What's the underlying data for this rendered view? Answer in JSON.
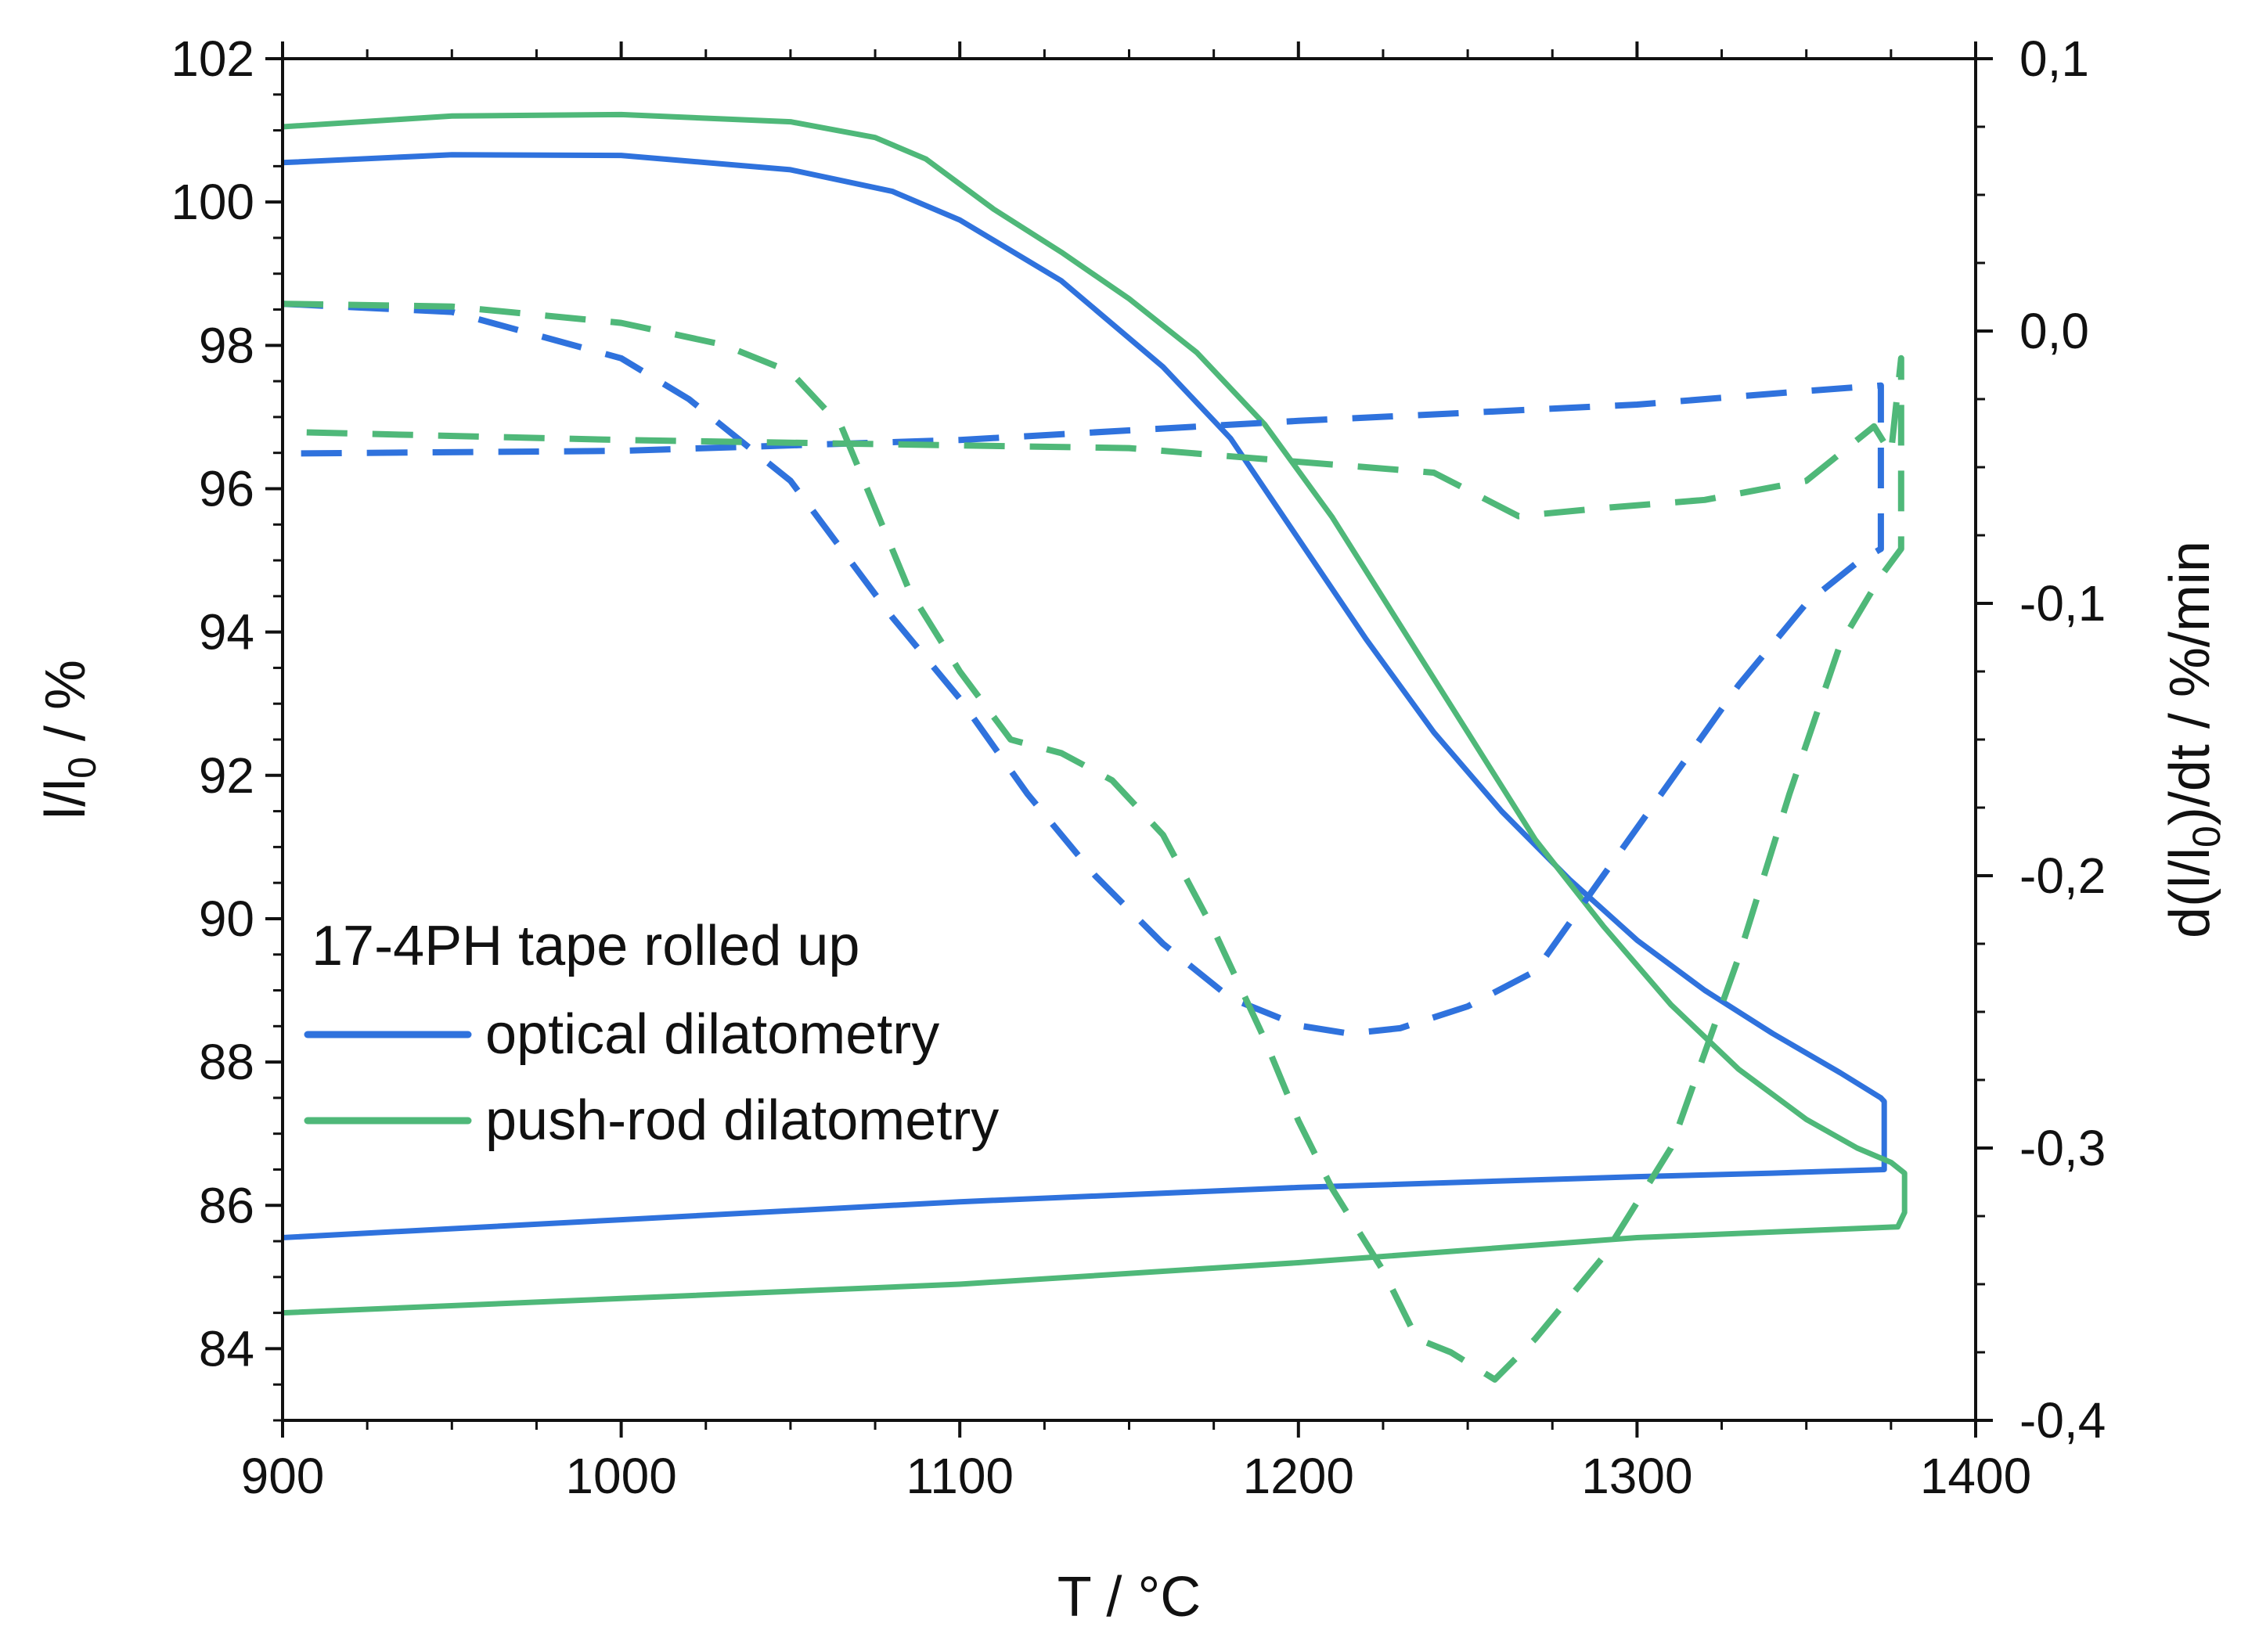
{
  "chart_data": {
    "type": "line",
    "title": "",
    "xlabel": "T / °C",
    "ylabel": "l/l0 / %",
    "ylabel_parts": {
      "main": "l/l",
      "sub": "0",
      "tail": " / %"
    },
    "y2label": "d(l/l0)/dt / %/min",
    "y2label_parts": {
      "pre": "d(l/l",
      "sub": "0",
      "post": ")/dt / %/min"
    },
    "xlim": [
      900,
      1400
    ],
    "ylim": [
      83,
      102
    ],
    "y2lim": [
      -0.4,
      0.1
    ],
    "x_ticks": [
      900,
      1000,
      1100,
      1200,
      1300,
      1400
    ],
    "x_tick_labels": [
      "900",
      "1000",
      "1100",
      "1200",
      "1300",
      "1400"
    ],
    "y_ticks": [
      84,
      86,
      88,
      90,
      92,
      94,
      96,
      98,
      100,
      102
    ],
    "y_tick_labels": [
      "84",
      "86",
      "88",
      "90",
      "92",
      "94",
      "96",
      "98",
      "100",
      "102"
    ],
    "y2_ticks": [
      -0.4,
      -0.3,
      -0.2,
      -0.1,
      0.0,
      0.1
    ],
    "y2_tick_labels": [
      "-0,4",
      "-0,3",
      "-0,2",
      "-0,1",
      "0,0",
      "0,1"
    ],
    "legend": {
      "title": "17-4PH tape rolled up",
      "position": "bottom-left",
      "entries": [
        {
          "label": "optical dilatometry",
          "color": "#2f72dd"
        },
        {
          "label": "push-rod dilatometry",
          "color": "#4fb879"
        }
      ]
    },
    "series": [
      {
        "name": "optical dilatometry",
        "axis": "left",
        "style": "solid",
        "color": "#2f72dd",
        "points": [
          [
            900,
            100.55
          ],
          [
            950,
            100.66
          ],
          [
            1000,
            100.65
          ],
          [
            1050,
            100.45
          ],
          [
            1080,
            100.15
          ],
          [
            1100,
            99.75
          ],
          [
            1130,
            98.9
          ],
          [
            1160,
            97.7
          ],
          [
            1180,
            96.7
          ],
          [
            1200,
            95.3
          ],
          [
            1220,
            93.9
          ],
          [
            1240,
            92.6
          ],
          [
            1260,
            91.5
          ],
          [
            1280,
            90.55
          ],
          [
            1300,
            89.7
          ],
          [
            1320,
            89.0
          ],
          [
            1340,
            88.4
          ],
          [
            1360,
            87.85
          ],
          [
            1372,
            87.5
          ],
          [
            1373,
            87.45
          ],
          [
            1373,
            86.5
          ],
          [
            1340,
            86.45
          ],
          [
            1300,
            86.4
          ],
          [
            1200,
            86.25
          ],
          [
            1100,
            86.05
          ],
          [
            1000,
            85.8
          ],
          [
            900,
            85.55
          ]
        ]
      },
      {
        "name": "push-rod dilatometry",
        "axis": "left",
        "style": "solid",
        "color": "#4fb879",
        "points": [
          [
            900,
            101.05
          ],
          [
            950,
            101.2
          ],
          [
            1000,
            101.22
          ],
          [
            1050,
            101.12
          ],
          [
            1075,
            100.9
          ],
          [
            1090,
            100.6
          ],
          [
            1110,
            99.9
          ],
          [
            1130,
            99.3
          ],
          [
            1150,
            98.65
          ],
          [
            1170,
            97.9
          ],
          [
            1190,
            96.9
          ],
          [
            1210,
            95.6
          ],
          [
            1230,
            94.1
          ],
          [
            1250,
            92.6
          ],
          [
            1270,
            91.1
          ],
          [
            1290,
            89.9
          ],
          [
            1310,
            88.8
          ],
          [
            1330,
            87.9
          ],
          [
            1350,
            87.2
          ],
          [
            1365,
            86.8
          ],
          [
            1375,
            86.6
          ],
          [
            1379,
            86.45
          ],
          [
            1379,
            85.9
          ],
          [
            1377,
            85.7
          ],
          [
            1300,
            85.55
          ],
          [
            1200,
            85.2
          ],
          [
            1100,
            84.9
          ],
          [
            1000,
            84.7
          ],
          [
            900,
            84.5
          ]
        ]
      },
      {
        "name": "optical dilatometry rate",
        "axis": "right",
        "style": "dashed",
        "color": "#2f72dd",
        "points": [
          [
            900,
            0.01
          ],
          [
            950,
            0.007
          ],
          [
            1000,
            -0.01
          ],
          [
            1020,
            -0.025
          ],
          [
            1050,
            -0.055
          ],
          [
            1080,
            -0.105
          ],
          [
            1100,
            -0.135
          ],
          [
            1120,
            -0.17
          ],
          [
            1140,
            -0.2
          ],
          [
            1160,
            -0.225
          ],
          [
            1180,
            -0.245
          ],
          [
            1200,
            -0.255
          ],
          [
            1215,
            -0.258
          ],
          [
            1230,
            -0.256
          ],
          [
            1250,
            -0.248
          ],
          [
            1270,
            -0.235
          ],
          [
            1290,
            -0.2
          ],
          [
            1310,
            -0.165
          ],
          [
            1330,
            -0.13
          ],
          [
            1350,
            -0.1
          ],
          [
            1365,
            -0.085
          ],
          [
            1372,
            -0.08
          ],
          [
            1372,
            -0.02
          ],
          [
            1350,
            -0.022
          ],
          [
            1300,
            -0.027
          ],
          [
            1200,
            -0.033
          ],
          [
            1100,
            -0.04
          ],
          [
            1000,
            -0.044
          ],
          [
            900,
            -0.045
          ]
        ]
      },
      {
        "name": "push-rod dilatometry rate",
        "axis": "right",
        "style": "dashed",
        "color": "#4fb879",
        "points": [
          [
            900,
            0.01
          ],
          [
            950,
            0.009
          ],
          [
            1000,
            0.003
          ],
          [
            1030,
            -0.005
          ],
          [
            1050,
            -0.015
          ],
          [
            1065,
            -0.035
          ],
          [
            1075,
            -0.065
          ],
          [
            1085,
            -0.095
          ],
          [
            1100,
            -0.125
          ],
          [
            1115,
            -0.15
          ],
          [
            1130,
            -0.155
          ],
          [
            1145,
            -0.165
          ],
          [
            1160,
            -0.185
          ],
          [
            1175,
            -0.22
          ],
          [
            1190,
            -0.26
          ],
          [
            1200,
            -0.29
          ],
          [
            1210,
            -0.315
          ],
          [
            1225,
            -0.345
          ],
          [
            1235,
            -0.37
          ],
          [
            1245,
            -0.375
          ],
          [
            1258,
            -0.385
          ],
          [
            1270,
            -0.37
          ],
          [
            1290,
            -0.34
          ],
          [
            1310,
            -0.3
          ],
          [
            1330,
            -0.23
          ],
          [
            1345,
            -0.17
          ],
          [
            1360,
            -0.115
          ],
          [
            1372,
            -0.09
          ],
          [
            1378,
            -0.08
          ],
          [
            1378,
            -0.01
          ],
          [
            1375,
            -0.045
          ],
          [
            1370,
            -0.035
          ],
          [
            1350,
            -0.055
          ],
          [
            1320,
            -0.062
          ],
          [
            1290,
            -0.065
          ],
          [
            1265,
            -0.068
          ],
          [
            1240,
            -0.052
          ],
          [
            1220,
            -0.05
          ],
          [
            1190,
            -0.047
          ],
          [
            1150,
            -0.043
          ],
          [
            1100,
            -0.042
          ],
          [
            1000,
            -0.04
          ],
          [
            900,
            -0.037
          ]
        ]
      }
    ]
  }
}
